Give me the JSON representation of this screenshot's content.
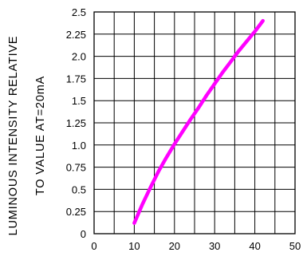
{
  "chart_data": {
    "type": "line",
    "title": "",
    "xlabel": "",
    "ylabel_lines": [
      "LUMINOUS INTENSITY RELATIVE",
      "TO VALUE AT=20mA"
    ],
    "xlim": [
      0,
      50
    ],
    "ylim": [
      0,
      2.5
    ],
    "x_ticks": [
      "0",
      "10",
      "20",
      "30",
      "40",
      "50"
    ],
    "y_ticks": [
      "0",
      "0.25",
      "0.5",
      "0.75",
      "1.0",
      "1.25",
      "1.5",
      "1.75",
      "2.0",
      "2.25",
      "2.5"
    ],
    "grid": true,
    "series": [
      {
        "color": "#ff00ff",
        "x": [
          10,
          12,
          14,
          16,
          18,
          20,
          22,
          24,
          26,
          28,
          30,
          32,
          34,
          36,
          38,
          40,
          42
        ],
        "y": [
          0.12,
          0.33,
          0.52,
          0.7,
          0.86,
          1.01,
          1.15,
          1.29,
          1.42,
          1.56,
          1.69,
          1.82,
          1.94,
          2.06,
          2.17,
          2.28,
          2.4
        ]
      }
    ]
  }
}
